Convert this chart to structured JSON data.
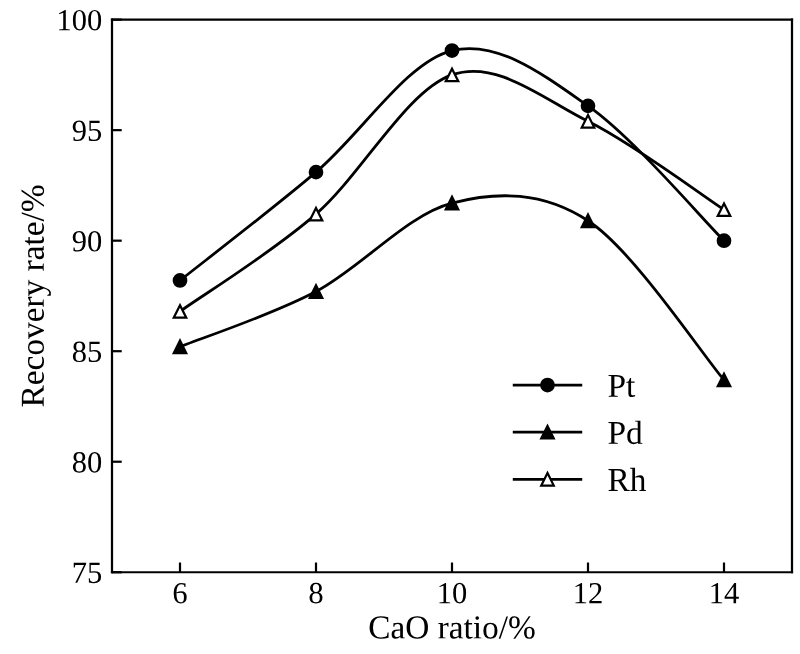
{
  "chart_data": {
    "type": "line",
    "xlabel": "CaO ratio/%",
    "ylabel": "Recovery rate/%",
    "x": [
      6,
      8,
      10,
      12,
      14
    ],
    "series": [
      {
        "name": "Pt",
        "color": "#000000",
        "marker": "circle",
        "values": [
          88.2,
          93.1,
          98.6,
          96.1,
          90.0
        ]
      },
      {
        "name": "Pd",
        "color": "#000000",
        "marker": "triangle",
        "values": [
          85.2,
          87.7,
          91.7,
          90.9,
          83.7
        ]
      },
      {
        "name": "Rh",
        "color": "#000000",
        "marker": "triangle_open",
        "values": [
          86.8,
          91.2,
          97.5,
          95.4,
          91.4
        ]
      }
    ],
    "xlim": [
      5,
      15
    ],
    "xticks": [
      6,
      8,
      10,
      12,
      14
    ],
    "ylim": [
      75,
      100
    ],
    "yticks": [
      75,
      80,
      85,
      90,
      95,
      100
    ],
    "grid": false,
    "legend": "bottom right",
    "line_style": "solid"
  }
}
